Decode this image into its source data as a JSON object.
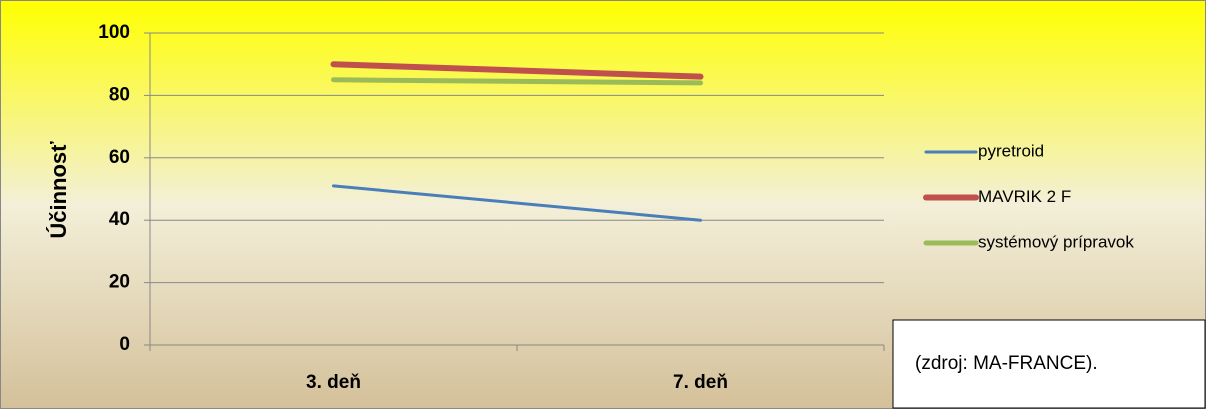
{
  "chart_data": {
    "type": "line",
    "y_label": "Účinnosť",
    "categories": [
      "3. deň",
      "7. deň"
    ],
    "series": [
      {
        "name": "pyretroid",
        "color": "#4a7ebb",
        "values": [
          51,
          40
        ]
      },
      {
        "name": "MAVRIK 2 F",
        "color": "#c0504d",
        "values": [
          90,
          86
        ]
      },
      {
        "name": "systémový prípravok",
        "color": "#9bbb59",
        "values": [
          85,
          84
        ]
      }
    ],
    "ylim": [
      0,
      100
    ],
    "yticks": [
      0,
      20,
      40,
      60,
      80,
      100
    ],
    "grid": true,
    "legend": "right",
    "annotation": "(zdroj: MA-FRANCE)."
  }
}
